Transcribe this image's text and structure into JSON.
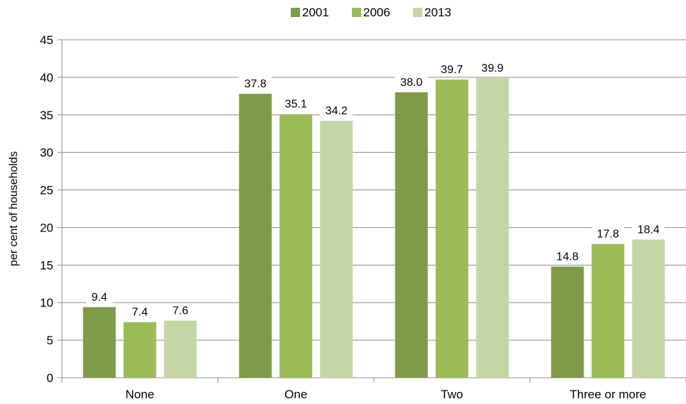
{
  "chart_data": {
    "type": "bar",
    "title": "",
    "xlabel": "",
    "ylabel": "per cent of households",
    "ylim": [
      0,
      45
    ],
    "yticks": [
      0,
      5,
      10,
      15,
      20,
      25,
      30,
      35,
      40,
      45
    ],
    "grid": true,
    "legend_position": "top-center",
    "categories": [
      "None",
      "One",
      "Two",
      "Three or more"
    ],
    "series": [
      {
        "name": "2001",
        "color": "#7f9a48",
        "values": [
          9.4,
          37.8,
          38.0,
          14.8
        ],
        "labels": [
          "9.4",
          "37.8",
          "38.0",
          "14.8"
        ]
      },
      {
        "name": "2006",
        "color": "#9bbb59",
        "values": [
          7.4,
          35.1,
          39.7,
          17.8
        ],
        "labels": [
          "7.4",
          "35.1",
          "39.7",
          "17.8"
        ]
      },
      {
        "name": "2013",
        "color": "#c4d6a4",
        "values": [
          7.6,
          34.2,
          39.9,
          18.4
        ],
        "labels": [
          "7.6",
          "34.2",
          "39.9",
          "18.4"
        ]
      }
    ]
  }
}
